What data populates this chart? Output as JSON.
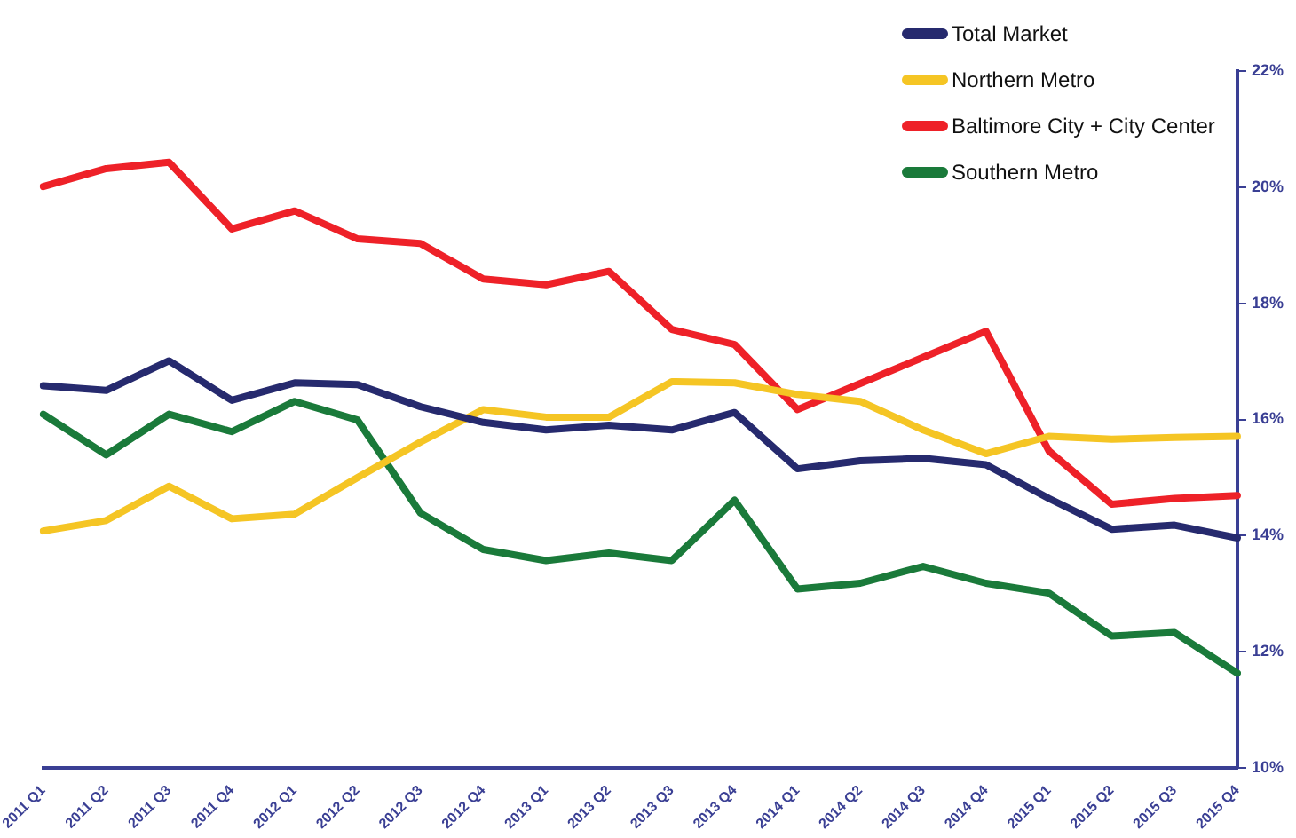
{
  "chart_data": {
    "type": "line",
    "categories": [
      "2011 Q1",
      "2011 Q2",
      "2011 Q3",
      "2011 Q4",
      "2012 Q1",
      "2012 Q2",
      "2012 Q3",
      "2012 Q4",
      "2013 Q1",
      "2013 Q2",
      "2013 Q3",
      "2013 Q4",
      "2014 Q1",
      "2014 Q2",
      "2014 Q3",
      "2014 Q4",
      "2015 Q1",
      "2015 Q2",
      "2015 Q3",
      "2015 Q4"
    ],
    "series": [
      {
        "name": "Total Market",
        "color": "#262a6e",
        "values": [
          16.58,
          16.5,
          17.01,
          16.33,
          16.63,
          16.6,
          16.22,
          15.95,
          15.82,
          15.9,
          15.82,
          16.12,
          15.15,
          15.29,
          15.33,
          15.22,
          14.64,
          14.11,
          14.18,
          13.96
        ]
      },
      {
        "name": "Northern Metro",
        "color": "#f5c524",
        "values": [
          14.08,
          14.26,
          14.85,
          14.29,
          14.37,
          15.0,
          15.61,
          16.17,
          16.04,
          16.04,
          16.65,
          16.63,
          16.43,
          16.31,
          15.82,
          15.41,
          15.71,
          15.66,
          15.69,
          15.71
        ]
      },
      {
        "name": "Baltimore City + City Center",
        "color": "#ee2128",
        "values": [
          20.01,
          20.32,
          20.43,
          19.28,
          19.59,
          19.11,
          19.03,
          18.42,
          18.32,
          18.55,
          17.55,
          17.29,
          16.17,
          16.62,
          17.07,
          17.52,
          15.46,
          14.54,
          14.64,
          14.69
        ]
      },
      {
        "name": "Southern Metro",
        "color": "#1a7a3a",
        "values": [
          16.09,
          15.39,
          16.09,
          15.79,
          16.31,
          15.99,
          14.39,
          13.76,
          13.57,
          13.7,
          13.57,
          14.61,
          13.08,
          13.18,
          13.47,
          13.18,
          13.01,
          12.27,
          12.33,
          11.63
        ]
      }
    ],
    "ylim": [
      10,
      22
    ],
    "yticks": [
      {
        "value": 10,
        "label": "10%"
      },
      {
        "value": 12,
        "label": "12%"
      },
      {
        "value": 14,
        "label": "14%"
      },
      {
        "value": 16,
        "label": "16%"
      },
      {
        "value": 18,
        "label": "18%"
      },
      {
        "value": 20,
        "label": "20%"
      },
      {
        "value": 22,
        "label": "22%"
      }
    ],
    "grid": false,
    "legend": "top right",
    "marker": "none",
    "line_style": "solid"
  }
}
